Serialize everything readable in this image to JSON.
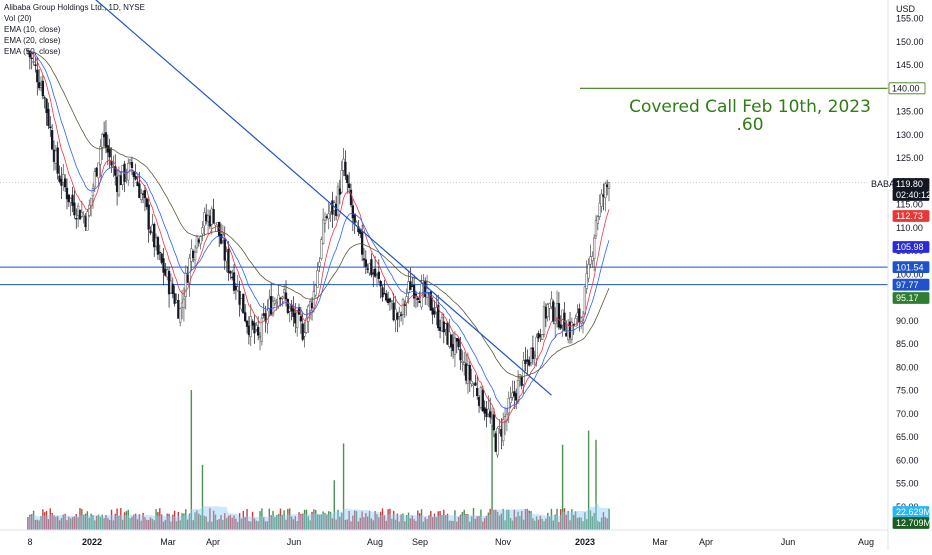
{
  "legend": {
    "symbol_line": "Alibaba Group Holdings Ltd., 1D, NYSE",
    "vol": "Vol (20)",
    "ema10": "EMA (10, close)",
    "ema20": "EMA (20, close)",
    "ema50": "EMA (50, close)"
  },
  "annotation": {
    "line1": "Covered Call Feb 10th, 2023",
    "line2": ".60"
  },
  "colors": {
    "up": "#26a69a",
    "down": "#131722",
    "ema10": "#f23645",
    "ema20": "#2962ff",
    "ema50": "#5a5a3a",
    "trend": "#1e53c9",
    "hline": "#1e53c9",
    "target": "#3c7a14",
    "vol_up": "#2e7d32",
    "vol_down": "#b71c1c",
    "vol_ma": "#90caf9"
  },
  "chart_data": {
    "type": "candlestick",
    "symbol": "BABA",
    "y_axis": {
      "unit": "USD",
      "min": 45,
      "max": 159,
      "ticks": [
        155,
        150,
        145,
        140,
        135,
        130,
        125,
        120,
        115,
        110,
        105,
        100,
        95,
        90,
        85,
        80,
        75,
        70,
        65,
        60,
        55,
        50
      ]
    },
    "x_axis": {
      "ticks": [
        "8",
        "2022",
        "Mar",
        "Apr",
        "Jun",
        "Aug",
        "Sep",
        "Nov",
        "2023",
        "Mar",
        "Apr",
        "Jun",
        "Aug"
      ]
    },
    "price_tags": [
      {
        "label": "140.00",
        "kind": "target"
      },
      {
        "label": "BABA",
        "kind": "symbol"
      },
      {
        "label": "119.80",
        "kind": "last"
      },
      {
        "label": "02:40:12",
        "kind": "countdown"
      },
      {
        "label": "112.73",
        "kind": "ema10"
      },
      {
        "label": "105.98",
        "kind": "ema20"
      },
      {
        "label": "101.54",
        "kind": "hline"
      },
      {
        "label": "97.77",
        "kind": "hline"
      },
      {
        "label": "95.17",
        "kind": "ema50"
      },
      {
        "label": "22.629M",
        "kind": "vol_ma"
      },
      {
        "label": "12.709M",
        "kind": "volume"
      }
    ],
    "horizontal_levels": [
      101.54,
      97.77
    ],
    "target_level": 140.0,
    "last_price": 119.8,
    "price_path": [
      {
        "i": 0,
        "p": 148
      },
      {
        "i": 8,
        "p": 140
      },
      {
        "i": 16,
        "p": 122
      },
      {
        "i": 24,
        "p": 115
      },
      {
        "i": 32,
        "p": 112
      },
      {
        "i": 40,
        "p": 130
      },
      {
        "i": 48,
        "p": 120
      },
      {
        "i": 56,
        "p": 123
      },
      {
        "i": 62,
        "p": 116
      },
      {
        "i": 70,
        "p": 104
      },
      {
        "i": 76,
        "p": 98
      },
      {
        "i": 82,
        "p": 92
      },
      {
        "i": 88,
        "p": 105
      },
      {
        "i": 94,
        "p": 111
      },
      {
        "i": 100,
        "p": 113
      },
      {
        "i": 106,
        "p": 104
      },
      {
        "i": 112,
        "p": 98
      },
      {
        "i": 118,
        "p": 90
      },
      {
        "i": 124,
        "p": 86
      },
      {
        "i": 130,
        "p": 93
      },
      {
        "i": 136,
        "p": 97
      },
      {
        "i": 142,
        "p": 91
      },
      {
        "i": 148,
        "p": 88
      },
      {
        "i": 154,
        "p": 96
      },
      {
        "i": 160,
        "p": 112
      },
      {
        "i": 166,
        "p": 115
      },
      {
        "i": 170,
        "p": 123
      },
      {
        "i": 176,
        "p": 110
      },
      {
        "i": 182,
        "p": 103
      },
      {
        "i": 188,
        "p": 99
      },
      {
        "i": 194,
        "p": 94
      },
      {
        "i": 200,
        "p": 90
      },
      {
        "i": 206,
        "p": 98
      },
      {
        "i": 212,
        "p": 96
      },
      {
        "i": 218,
        "p": 93
      },
      {
        "i": 224,
        "p": 88
      },
      {
        "i": 230,
        "p": 84
      },
      {
        "i": 236,
        "p": 79
      },
      {
        "i": 242,
        "p": 75
      },
      {
        "i": 248,
        "p": 70
      },
      {
        "i": 252,
        "p": 64
      },
      {
        "i": 256,
        "p": 68
      },
      {
        "i": 262,
        "p": 74
      },
      {
        "i": 268,
        "p": 80
      },
      {
        "i": 274,
        "p": 86
      },
      {
        "i": 280,
        "p": 93
      },
      {
        "i": 286,
        "p": 91
      },
      {
        "i": 292,
        "p": 88
      },
      {
        "i": 298,
        "p": 91
      },
      {
        "i": 302,
        "p": 100
      },
      {
        "i": 306,
        "p": 112
      },
      {
        "i": 310,
        "p": 117
      },
      {
        "i": 313,
        "p": 119.8
      }
    ],
    "trendline": [
      {
        "i": 28,
        "p": 162
      },
      {
        "i": 282,
        "p": 74
      }
    ],
    "bar_count": 314
  }
}
